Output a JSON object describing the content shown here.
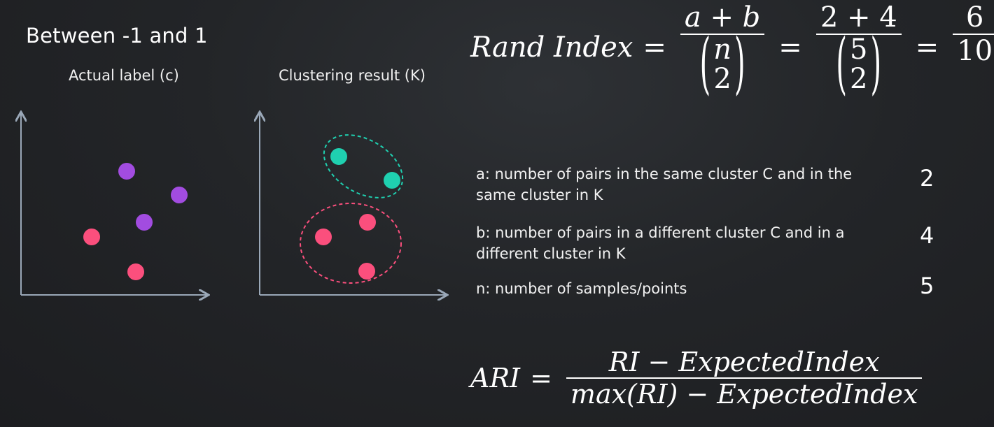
{
  "heading": "Between -1 and 1",
  "left_plot": {
    "title": "Actual label (c)"
  },
  "right_plot": {
    "title": "Clustering result (K)"
  },
  "colors": {
    "purple": "#a24ce0",
    "pink": "#fb4f7d",
    "teal": "#1fd0b0",
    "axis": "#9aa8b8"
  },
  "rand_index": {
    "lhs": "Rand Index",
    "eq": "=",
    "f1_num": "a + b",
    "f1_den_top": "n",
    "f1_den_bottom": "2",
    "f2_num": "2 + 4",
    "f2_den_top": "5",
    "f2_den_bottom": "2",
    "f3_num": "6",
    "f3_den": "10"
  },
  "definitions": [
    {
      "text": "a: number of pairs in the same cluster C and in the same cluster in K",
      "value": "2"
    },
    {
      "text": "b: number of pairs in a different cluster C and in a different cluster in K",
      "value": "4"
    },
    {
      "text": "n: number of samples/points",
      "value": "5"
    }
  ],
  "ari": {
    "lhs": "ARI",
    "eq": "=",
    "num": "RI − ExpectedIndex",
    "den": "max(RI) − ExpectedIndex"
  }
}
